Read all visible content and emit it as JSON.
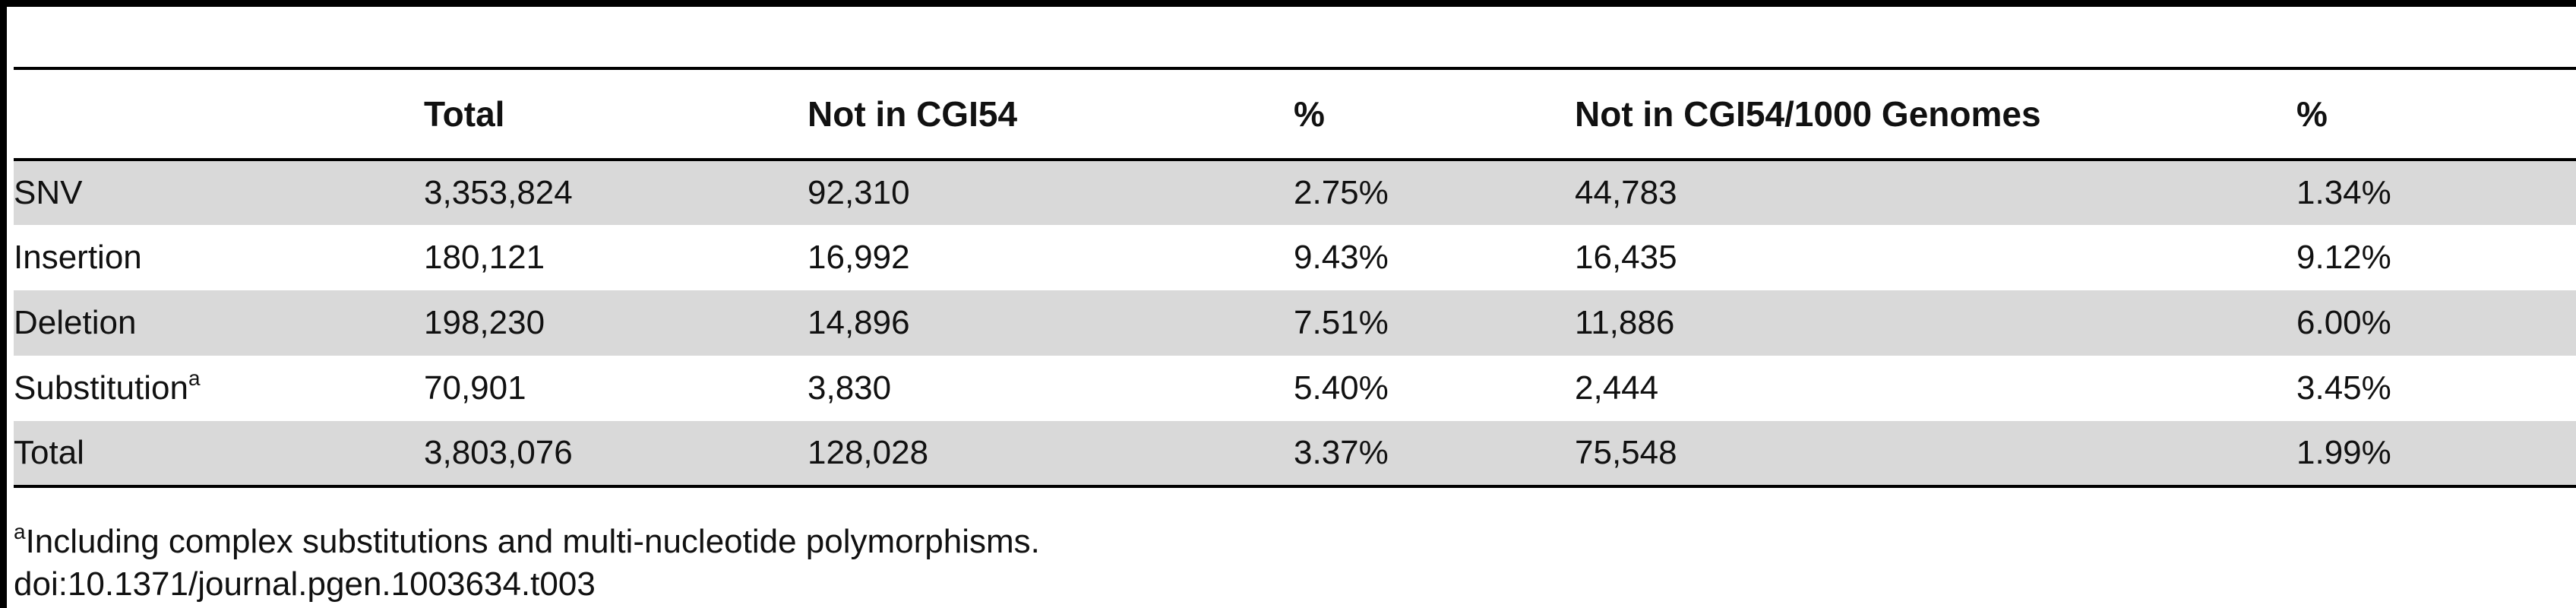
{
  "columns": [
    "",
    "Total",
    "Not in CGI54",
    "%",
    "Not in CGI54/1000 Genomes",
    "%"
  ],
  "rows": [
    {
      "label": "SNV",
      "sup": "",
      "cells": [
        "3,353,824",
        "92,310",
        "2.75%",
        "44,783",
        "1.34%"
      ]
    },
    {
      "label": "Insertion",
      "sup": "",
      "cells": [
        "180,121",
        "16,992",
        "9.43%",
        "16,435",
        "9.12%"
      ]
    },
    {
      "label": "Deletion",
      "sup": "",
      "cells": [
        "198,230",
        "14,896",
        "7.51%",
        "11,886",
        "6.00%"
      ]
    },
    {
      "label": "Substitution",
      "sup": "a",
      "cells": [
        "70,901",
        "3,830",
        "5.40%",
        "2,444",
        "3.45%"
      ]
    },
    {
      "label": "Total",
      "sup": "",
      "cells": [
        "3,803,076",
        "128,028",
        "3.37%",
        "75,548",
        "1.99%"
      ]
    }
  ],
  "footnote": {
    "marker": "a",
    "text": "Including complex substitutions and multi-nucleotide polymorphisms."
  },
  "doi": "doi:10.1371/journal.pgen.1003634.t003"
}
